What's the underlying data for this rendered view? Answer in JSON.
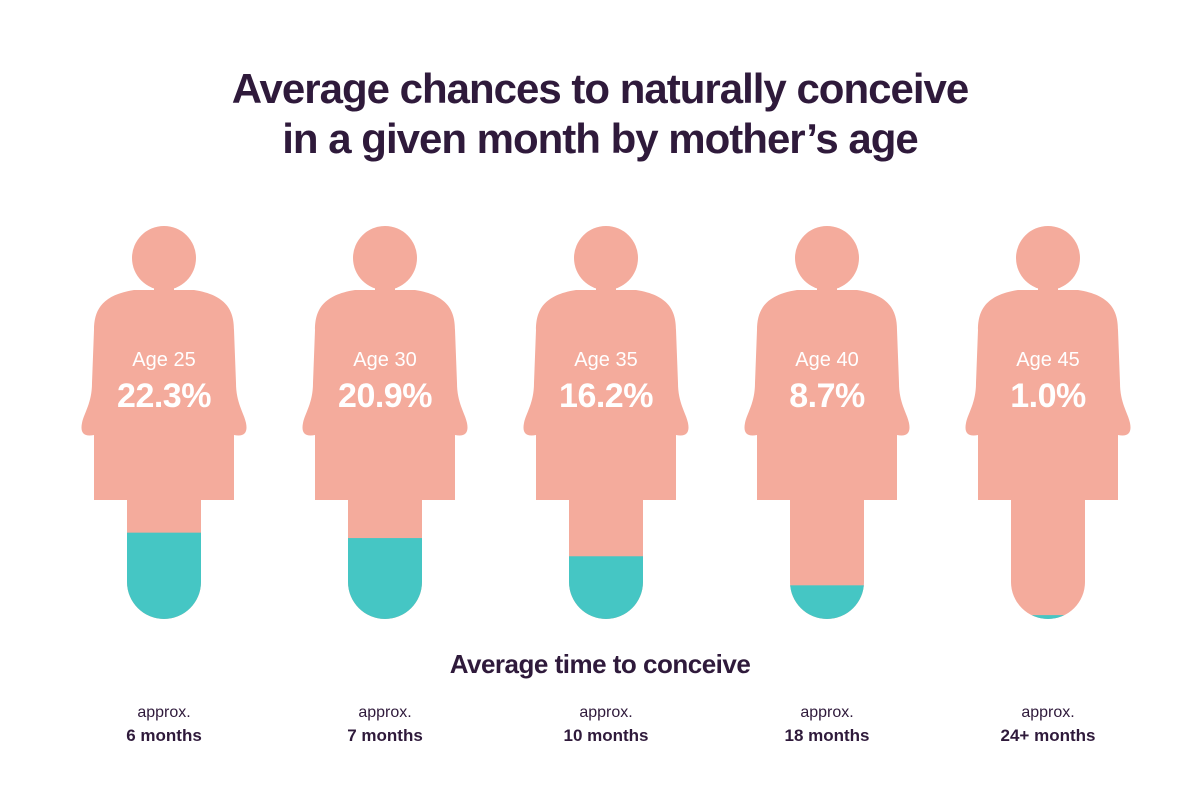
{
  "title_line1": "Average chances to naturally conceive",
  "title_line2": "in a given month by mother’s age",
  "subtitle": "Average time to conceive",
  "colors": {
    "title": "#2f1a3b",
    "figure": "#f4ab9c",
    "figure_fill": "#45c6c4",
    "label": "#ffffff"
  },
  "chart_data": {
    "type": "bar",
    "title": "Average chances to naturally conceive in a given month by mother’s age",
    "categories": [
      "Age 25",
      "Age 30",
      "Age 35",
      "Age 40",
      "Age 45"
    ],
    "values": [
      22.3,
      20.9,
      16.2,
      8.7,
      1.0
    ],
    "value_labels": [
      "22.3%",
      "20.9%",
      "16.2%",
      "8.7%",
      "1.0%"
    ],
    "unit": "%",
    "time_prefix": "approx.",
    "time_to_conceive": [
      "6 months",
      "7 months",
      "10 months",
      "18 months",
      "24+ months"
    ]
  }
}
